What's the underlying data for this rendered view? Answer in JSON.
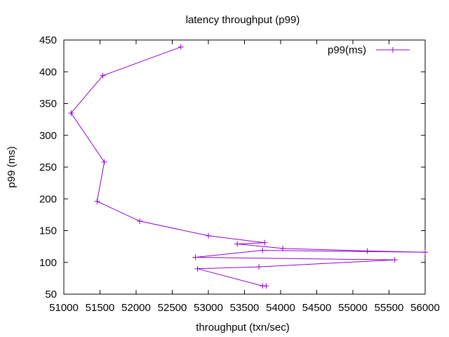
{
  "chart_data": {
    "type": "line",
    "title": "latency throughput (p99)",
    "xlabel": "throughput (txn/sec)",
    "ylabel": "p99 (ms)",
    "xlim": [
      51000,
      56000
    ],
    "ylim": [
      50,
      450
    ],
    "xticks": [
      51000,
      51500,
      52000,
      52500,
      53000,
      53500,
      54000,
      54500,
      55000,
      55500,
      56000
    ],
    "yticks": [
      50,
      100,
      150,
      200,
      250,
      300,
      350,
      400,
      450
    ],
    "xtick_labels": [
      "51000",
      "51500",
      "52000",
      "52500",
      "53000",
      "53500",
      "54000",
      "54500",
      "55000",
      "55500",
      "56000"
    ],
    "ytick_labels": [
      "50",
      "100",
      "150",
      "200",
      "250",
      "300",
      "350",
      "400",
      "450"
    ],
    "grid": false,
    "legend_position": "top-right",
    "series": [
      {
        "name": "p99(ms)",
        "color": "#9400d3",
        "marker": "plus",
        "x": [
          52620,
          51540,
          51100,
          51560,
          51460,
          52050,
          53000,
          53780,
          53400,
          54030,
          55200,
          56000,
          53750,
          52820,
          55580,
          53700,
          52850,
          53750,
          53800
        ],
        "y": [
          439,
          394,
          335,
          258,
          196,
          165,
          142,
          131,
          129,
          122,
          118,
          116,
          119,
          108,
          104,
          93,
          90,
          63,
          63
        ]
      }
    ]
  }
}
